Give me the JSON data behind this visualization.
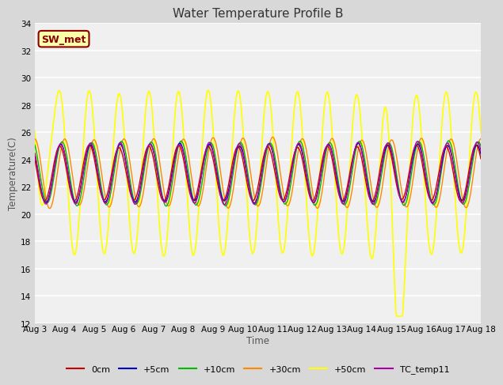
{
  "title": "Water Temperature Profile B",
  "xlabel": "Time",
  "ylabel": "Temperature(C)",
  "ylim": [
    12,
    34
  ],
  "xlim": [
    0,
    360
  ],
  "fig_bg_color": "#d8d8d8",
  "plot_bg_color": "#f0f0f0",
  "series_colors": {
    "0cm": "#cc0000",
    "+5cm": "#0000cc",
    "+10cm": "#00bb00",
    "+30cm": "#ff8800",
    "+50cm": "#ffff00",
    "TC_temp11": "#aa00aa"
  },
  "legend_label_box": "SW_met",
  "legend_box_bg": "#ffffaa",
  "legend_box_edge": "#880000",
  "x_tick_labels": [
    "Aug 3",
    "Aug 4",
    "Aug 5",
    "Aug 6",
    "Aug 7",
    "Aug 8",
    "Aug 9",
    "Aug 10",
    "Aug 11",
    "Aug 12",
    "Aug 13",
    "Aug 14",
    "Aug 15",
    "Aug 16",
    "Aug 17",
    "Aug 18"
  ],
  "x_tick_positions": [
    0,
    24,
    48,
    72,
    96,
    120,
    144,
    168,
    192,
    216,
    240,
    264,
    288,
    312,
    336,
    360
  ],
  "y_ticks": [
    12,
    14,
    16,
    18,
    20,
    22,
    24,
    26,
    28,
    30,
    32,
    34
  ]
}
